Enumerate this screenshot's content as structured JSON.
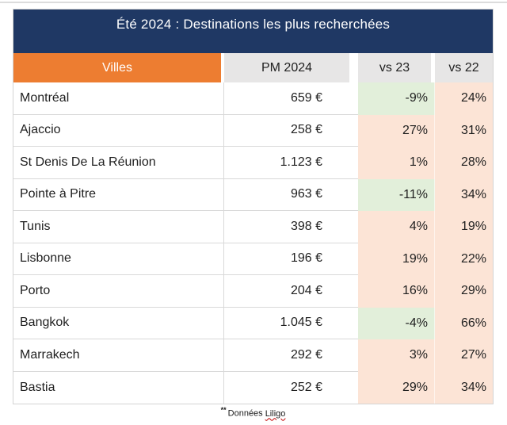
{
  "title": "Été 2024 : Destinations les plus recherchées",
  "columns": {
    "city": "Villes",
    "pm": "PM 2024",
    "vs23": "vs 23",
    "vs22": "vs 22"
  },
  "rows": [
    {
      "city": "Montréal",
      "pm": "659 €",
      "vs23": "-9%",
      "vs22": "24%"
    },
    {
      "city": "Ajaccio",
      "pm": "258 €",
      "vs23": "27%",
      "vs22": "31%"
    },
    {
      "city": "St Denis De La Réunion",
      "pm": "1.123 €",
      "vs23": "1%",
      "vs22": "28%"
    },
    {
      "city": "Pointe à Pitre",
      "pm": "963 €",
      "vs23": "-11%",
      "vs22": "34%"
    },
    {
      "city": "Tunis",
      "pm": "398 €",
      "vs23": "4%",
      "vs22": "19%"
    },
    {
      "city": "Lisbonne",
      "pm": "196 €",
      "vs23": "19%",
      "vs22": "22%"
    },
    {
      "city": "Porto",
      "pm": "204 €",
      "vs23": "16%",
      "vs22": "29%"
    },
    {
      "city": "Bangkok",
      "pm": "1.045 €",
      "vs23": "-4%",
      "vs22": "66%"
    },
    {
      "city": "Marrakech",
      "pm": "292 €",
      "vs23": "3%",
      "vs22": "27%"
    },
    {
      "city": "Bastia",
      "pm": "252 €",
      "vs23": "29%",
      "vs22": "34%"
    }
  ],
  "footnote": {
    "marker": "**",
    "text": "Données",
    "brand": "Liligo"
  },
  "colors": {
    "navy": "#1F3864",
    "orange": "#ED7D31",
    "header_gray": "#E7E6E6",
    "positive_bg": "#FCE4D6",
    "negative_bg": "#E2EFDA",
    "row_border": "#D9D9D9",
    "underline_red": "#C00000"
  }
}
